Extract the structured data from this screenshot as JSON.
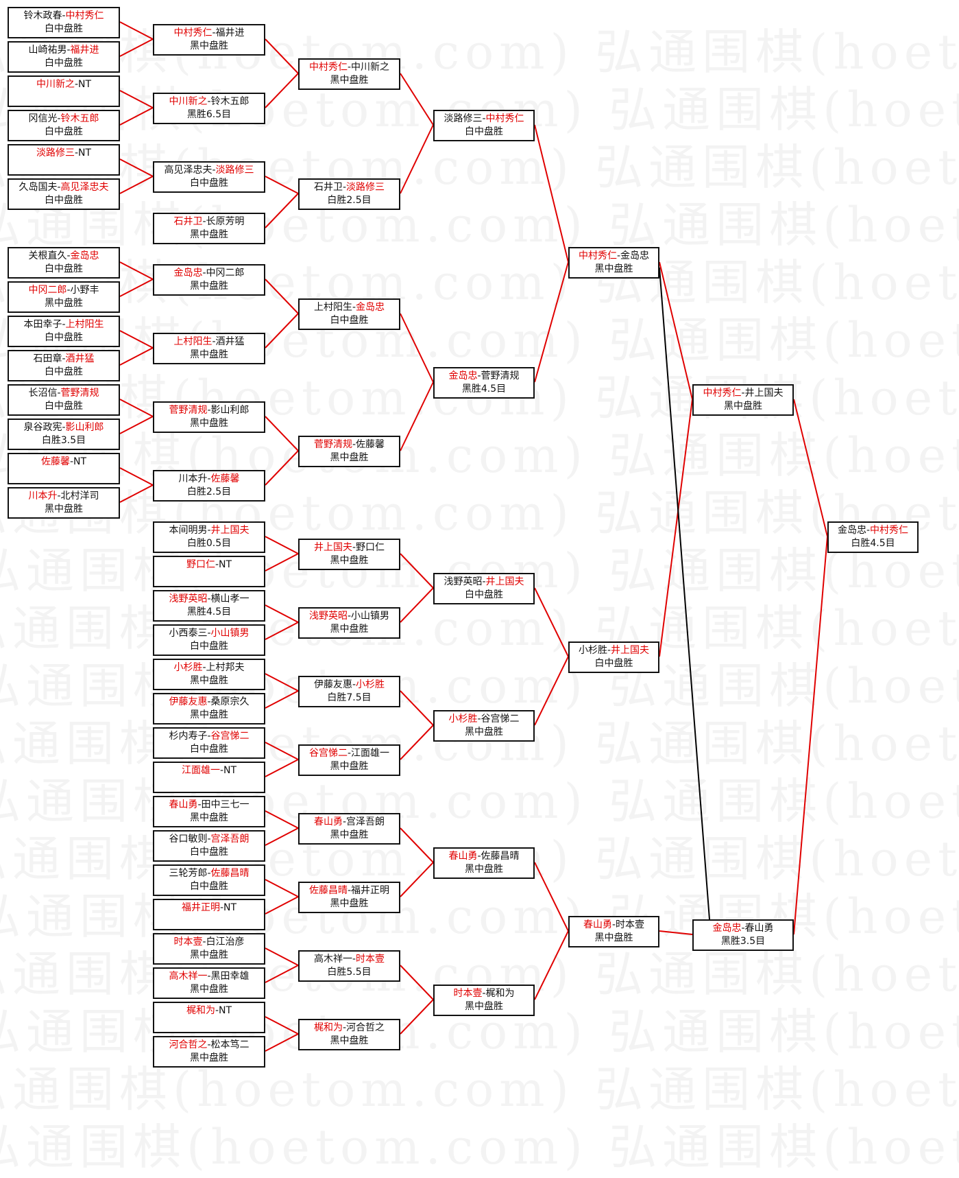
{
  "watermark": "弘通围棋(hoetom.com)",
  "separator": "-",
  "line_colors": {
    "advance": "#e00000",
    "drop": "#000000"
  },
  "rounds": [
    {
      "matches": [
        {
          "p1": "铃木政春",
          "p2": "中村秀仁",
          "winner": 2,
          "result": "白中盘胜"
        },
        {
          "p1": "山崎祐男",
          "p2": "福井进",
          "winner": 2,
          "result": "白中盘胜"
        },
        {
          "p1": "中川新之",
          "p2": "NT",
          "winner": 1,
          "result": ""
        },
        {
          "p1": "冈信光",
          "p2": "铃木五郎",
          "winner": 2,
          "result": "白中盘胜"
        },
        {
          "p1": "淡路修三",
          "p2": "NT",
          "winner": 1,
          "result": ""
        },
        {
          "p1": "久岛国夫",
          "p2": "高见泽忠夫",
          "winner": 2,
          "result": "白中盘胜"
        },
        {
          "p1": "关根直久",
          "p2": "金岛忠",
          "winner": 2,
          "result": "白中盘胜"
        },
        {
          "p1": "中冈二郎",
          "p2": "小野丰",
          "winner": 1,
          "result": "黑中盘胜"
        },
        {
          "p1": "本田幸子",
          "p2": "上村阳生",
          "winner": 2,
          "result": "白中盘胜"
        },
        {
          "p1": "石田章",
          "p2": "酒井猛",
          "winner": 2,
          "result": "白中盘胜"
        },
        {
          "p1": "长沼信",
          "p2": "菅野清规",
          "winner": 2,
          "result": "白中盘胜"
        },
        {
          "p1": "泉谷政宪",
          "p2": "影山利郎",
          "winner": 2,
          "result": "白胜3.5目"
        },
        {
          "p1": "佐藤馨",
          "p2": "NT",
          "winner": 1,
          "result": ""
        },
        {
          "p1": "川本升",
          "p2": "北村洋司",
          "winner": 1,
          "result": "黑中盘胜"
        }
      ]
    },
    {
      "matches": [
        {
          "p1": "中村秀仁",
          "p2": "福井进",
          "winner": 1,
          "result": "黑中盘胜"
        },
        {
          "p1": "中川新之",
          "p2": "铃木五郎",
          "winner": 1,
          "result": "黑胜6.5目"
        },
        {
          "p1": "高见泽忠夫",
          "p2": "淡路修三",
          "winner": 2,
          "result": "白中盘胜"
        },
        {
          "p1": "石井卫",
          "p2": "长原芳明",
          "winner": 1,
          "result": "黑中盘胜"
        },
        {
          "p1": "金岛忠",
          "p2": "中冈二郎",
          "winner": 1,
          "result": "黑中盘胜"
        },
        {
          "p1": "上村阳生",
          "p2": "酒井猛",
          "winner": 1,
          "result": "黑中盘胜"
        },
        {
          "p1": "菅野清规",
          "p2": "影山利郎",
          "winner": 1,
          "result": "黑中盘胜"
        },
        {
          "p1": "川本升",
          "p2": "佐藤馨",
          "winner": 2,
          "result": "白胜2.5目"
        },
        {
          "p1": "本间明男",
          "p2": "井上国夫",
          "winner": 2,
          "result": "白胜0.5目"
        },
        {
          "p1": "野口仁",
          "p2": "NT",
          "winner": 1,
          "result": ""
        },
        {
          "p1": "浅野英昭",
          "p2": "横山孝一",
          "winner": 1,
          "result": "黑胜4.5目"
        },
        {
          "p1": "小西泰三",
          "p2": "小山镇男",
          "winner": 2,
          "result": "白中盘胜"
        },
        {
          "p1": "小杉胜",
          "p2": "上村邦夫",
          "winner": 1,
          "result": "黑中盘胜"
        },
        {
          "p1": "伊藤友惠",
          "p2": "桑原宗久",
          "winner": 1,
          "result": "黑中盘胜"
        },
        {
          "p1": "杉内寿子",
          "p2": "谷宫悌二",
          "winner": 2,
          "result": "白中盘胜"
        },
        {
          "p1": "江面雄一",
          "p2": "NT",
          "winner": 1,
          "result": ""
        },
        {
          "p1": "春山勇",
          "p2": "田中三七一",
          "winner": 1,
          "result": "黑中盘胜"
        },
        {
          "p1": "谷口敏则",
          "p2": "宫泽吾朗",
          "winner": 2,
          "result": "白中盘胜"
        },
        {
          "p1": "三轮芳郎",
          "p2": "佐藤昌晴",
          "winner": 2,
          "result": "白中盘胜"
        },
        {
          "p1": "福井正明",
          "p2": "NT",
          "winner": 1,
          "result": ""
        },
        {
          "p1": "时本壹",
          "p2": "白江治彦",
          "winner": 1,
          "result": "黑中盘胜"
        },
        {
          "p1": "高木祥一",
          "p2": "黑田幸雄",
          "winner": 1,
          "result": "黑中盘胜"
        },
        {
          "p1": "梶和为",
          "p2": "NT",
          "winner": 1,
          "result": ""
        },
        {
          "p1": "河合哲之",
          "p2": "松本笃二",
          "winner": 1,
          "result": "黑中盘胜"
        }
      ]
    },
    {
      "matches": [
        {
          "p1": "中村秀仁",
          "p2": "中川新之",
          "winner": 1,
          "result": "黑中盘胜"
        },
        {
          "p1": "石井卫",
          "p2": "淡路修三",
          "winner": 2,
          "result": "白胜2.5目"
        },
        {
          "p1": "上村阳生",
          "p2": "金岛忠",
          "winner": 2,
          "result": "白中盘胜"
        },
        {
          "p1": "菅野清规",
          "p2": "佐藤馨",
          "winner": 1,
          "result": "黑中盘胜"
        },
        {
          "p1": "井上国夫",
          "p2": "野口仁",
          "winner": 1,
          "result": "黑中盘胜"
        },
        {
          "p1": "浅野英昭",
          "p2": "小山镇男",
          "winner": 1,
          "result": "黑中盘胜"
        },
        {
          "p1": "伊藤友惠",
          "p2": "小杉胜",
          "winner": 2,
          "result": "白胜7.5目"
        },
        {
          "p1": "谷宫悌二",
          "p2": "江面雄一",
          "winner": 1,
          "result": "黑中盘胜"
        },
        {
          "p1": "春山勇",
          "p2": "宫泽吾朗",
          "winner": 1,
          "result": "黑中盘胜"
        },
        {
          "p1": "佐藤昌晴",
          "p2": "福井正明",
          "winner": 1,
          "result": "黑中盘胜"
        },
        {
          "p1": "高木祥一",
          "p2": "时本壹",
          "winner": 2,
          "result": "白胜5.5目"
        },
        {
          "p1": "梶和为",
          "p2": "河合哲之",
          "winner": 1,
          "result": "黑中盘胜"
        }
      ]
    },
    {
      "matches": [
        {
          "p1": "淡路修三",
          "p2": "中村秀仁",
          "winner": 2,
          "result": "白中盘胜"
        },
        {
          "p1": "金岛忠",
          "p2": "菅野清规",
          "winner": 1,
          "result": "黑胜4.5目"
        },
        {
          "p1": "浅野英昭",
          "p2": "井上国夫",
          "winner": 2,
          "result": "白中盘胜"
        },
        {
          "p1": "小杉胜",
          "p2": "谷宫悌二",
          "winner": 1,
          "result": "黑中盘胜"
        },
        {
          "p1": "春山勇",
          "p2": "佐藤昌晴",
          "winner": 1,
          "result": "黑中盘胜"
        },
        {
          "p1": "时本壹",
          "p2": "梶和为",
          "winner": 1,
          "result": "黑中盘胜"
        }
      ]
    },
    {
      "matches": [
        {
          "p1": "中村秀仁",
          "p2": "金岛忠",
          "winner": 1,
          "result": "黑中盘胜"
        },
        {
          "p1": "小杉胜",
          "p2": "井上国夫",
          "winner": 2,
          "result": "白中盘胜"
        },
        {
          "p1": "春山勇",
          "p2": "时本壹",
          "winner": 1,
          "result": "黑中盘胜"
        }
      ]
    },
    {
      "matches": [
        {
          "p1": "中村秀仁",
          "p2": "井上国夫",
          "winner": 1,
          "result": "黑中盘胜"
        },
        {
          "p1": "金岛忠",
          "p2": "春山勇",
          "winner": 1,
          "result": "黑胜3.5目"
        }
      ]
    },
    {
      "matches": [
        {
          "p1": "金岛忠",
          "p2": "中村秀仁",
          "winner": 2,
          "result": "白胜4.5目"
        }
      ]
    }
  ]
}
